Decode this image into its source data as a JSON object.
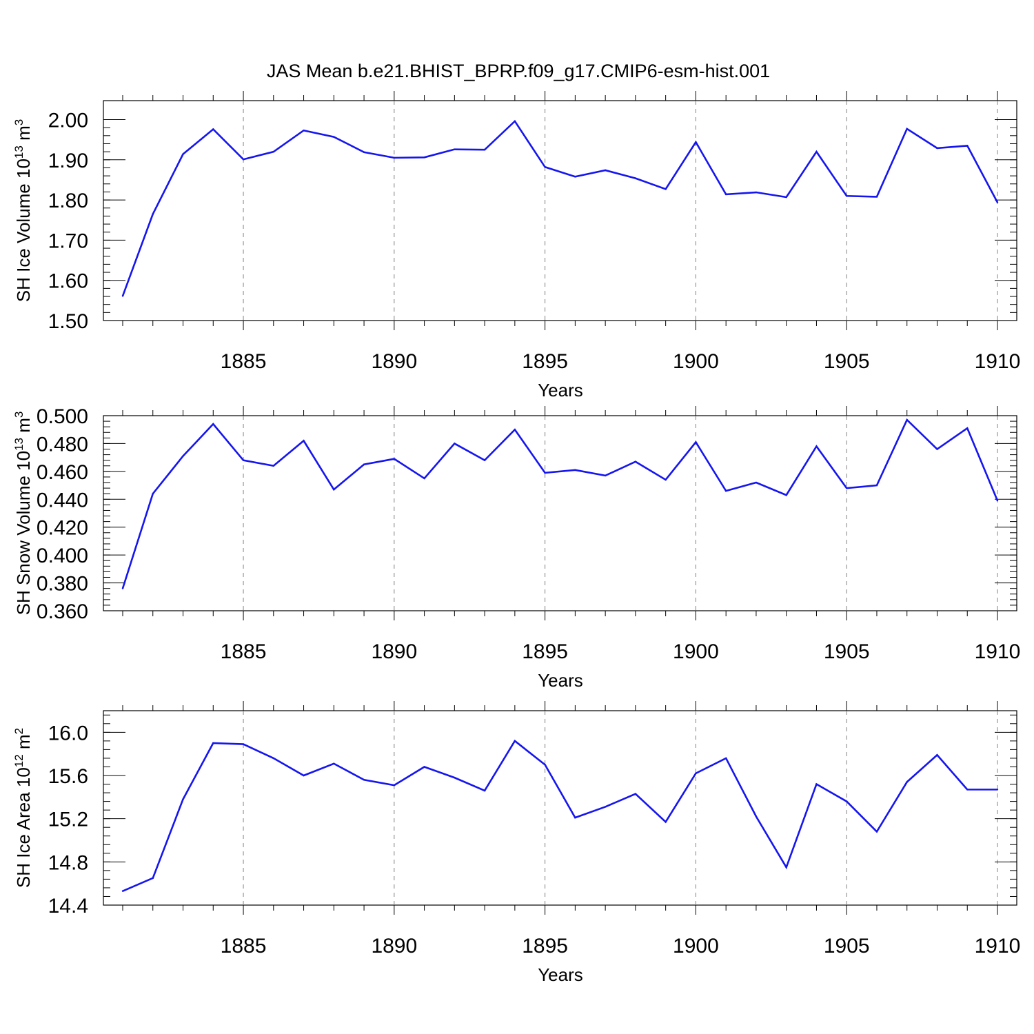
{
  "title": "JAS Mean b.e21.BHIST_BPRP.f09_g17.CMIP6-esm-hist.001",
  "colors": {
    "line": "#1515f0",
    "axis": "#000000",
    "grid": "#808080"
  },
  "chart_data": [
    {
      "type": "line",
      "xlabel": "Years",
      "ylabel": {
        "text": "SH Ice Volume 10",
        "exp": "13",
        "unit": " m",
        "unit_exp": "3"
      },
      "xlim": [
        1881,
        1910
      ],
      "ylim": [
        1.5,
        2.0
      ],
      "grid": "x-dashed",
      "x_ticks": [
        1885,
        1890,
        1895,
        1900,
        1905,
        1910
      ],
      "x_tick_labels": [
        "1885",
        "1890",
        "1895",
        "1900",
        "1905",
        "1910"
      ],
      "y_ticks": [
        1.5,
        1.6,
        1.7,
        1.8,
        1.9,
        2.0
      ],
      "y_tick_labels": [
        "1.50",
        "1.60",
        "1.70",
        "1.80",
        "1.90",
        "2.00"
      ],
      "y_minor_step": 0.02,
      "x": [
        1881,
        1882,
        1883,
        1884,
        1885,
        1886,
        1887,
        1888,
        1889,
        1890,
        1891,
        1892,
        1893,
        1894,
        1895,
        1896,
        1897,
        1898,
        1899,
        1900,
        1901,
        1902,
        1903,
        1904,
        1905,
        1906,
        1907,
        1908,
        1909,
        1910
      ],
      "series": [
        {
          "values": [
            1.561,
            1.765,
            1.914,
            1.976,
            1.901,
            1.92,
            1.973,
            1.957,
            1.919,
            1.905,
            1.906,
            1.926,
            1.925,
            1.996,
            1.882,
            1.858,
            1.874,
            1.854,
            1.827,
            1.944,
            1.814,
            1.819,
            1.807,
            1.92,
            1.81,
            1.808,
            1.977,
            1.929,
            1.935,
            1.794
          ]
        }
      ]
    },
    {
      "type": "line",
      "xlabel": "Years",
      "ylabel": {
        "text": "SH Snow Volume 10",
        "exp": "13",
        "unit": " m",
        "unit_exp": "3"
      },
      "xlim": [
        1881,
        1910
      ],
      "ylim": [
        0.36,
        0.5
      ],
      "grid": "x-dashed",
      "x_ticks": [
        1885,
        1890,
        1895,
        1900,
        1905,
        1910
      ],
      "x_tick_labels": [
        "1885",
        "1890",
        "1895",
        "1900",
        "1905",
        "1910"
      ],
      "y_ticks": [
        0.36,
        0.38,
        0.4,
        0.42,
        0.44,
        0.46,
        0.48,
        0.5
      ],
      "y_tick_labels": [
        "0.360",
        "0.380",
        "0.400",
        "0.420",
        "0.440",
        "0.460",
        "0.480",
        "0.500"
      ],
      "y_minor_step": 0.004,
      "x": [
        1881,
        1882,
        1883,
        1884,
        1885,
        1886,
        1887,
        1888,
        1889,
        1890,
        1891,
        1892,
        1893,
        1894,
        1895,
        1896,
        1897,
        1898,
        1899,
        1900,
        1901,
        1902,
        1903,
        1904,
        1905,
        1906,
        1907,
        1908,
        1909,
        1910
      ],
      "series": [
        {
          "values": [
            0.376,
            0.444,
            0.471,
            0.494,
            0.468,
            0.464,
            0.482,
            0.447,
            0.465,
            0.469,
            0.455,
            0.48,
            0.468,
            0.49,
            0.459,
            0.461,
            0.457,
            0.467,
            0.454,
            0.481,
            0.446,
            0.452,
            0.443,
            0.478,
            0.448,
            0.45,
            0.497,
            0.476,
            0.491,
            0.439
          ]
        }
      ]
    },
    {
      "type": "line",
      "xlabel": "Years",
      "ylabel": {
        "text": "SH Ice Area 10",
        "exp": "12",
        "unit": " m",
        "unit_exp": "2"
      },
      "xlim": [
        1881,
        1910
      ],
      "ylim": [
        14.4,
        16.2
      ],
      "grid": "x-dashed",
      "x_ticks": [
        1885,
        1890,
        1895,
        1900,
        1905,
        1910
      ],
      "x_tick_labels": [
        "1885",
        "1890",
        "1895",
        "1900",
        "1905",
        "1910"
      ],
      "y_ticks": [
        14.4,
        14.8,
        15.2,
        15.6,
        16.0
      ],
      "y_tick_labels": [
        "14.4",
        "14.8",
        "15.2",
        "15.6",
        "16.0"
      ],
      "y_minor_step": 0.08,
      "x": [
        1881,
        1882,
        1883,
        1884,
        1885,
        1886,
        1887,
        1888,
        1889,
        1890,
        1891,
        1892,
        1893,
        1894,
        1895,
        1896,
        1897,
        1898,
        1899,
        1900,
        1901,
        1902,
        1903,
        1904,
        1905,
        1906,
        1907,
        1908,
        1909,
        1910
      ],
      "series": [
        {
          "values": [
            14.53,
            14.65,
            15.38,
            15.9,
            15.89,
            15.76,
            15.6,
            15.71,
            15.56,
            15.51,
            15.68,
            15.58,
            15.46,
            15.92,
            15.7,
            15.21,
            15.31,
            15.43,
            15.17,
            15.62,
            15.76,
            15.22,
            14.75,
            15.52,
            15.36,
            15.08,
            15.54,
            15.79,
            15.47,
            15.47
          ]
        }
      ]
    }
  ]
}
